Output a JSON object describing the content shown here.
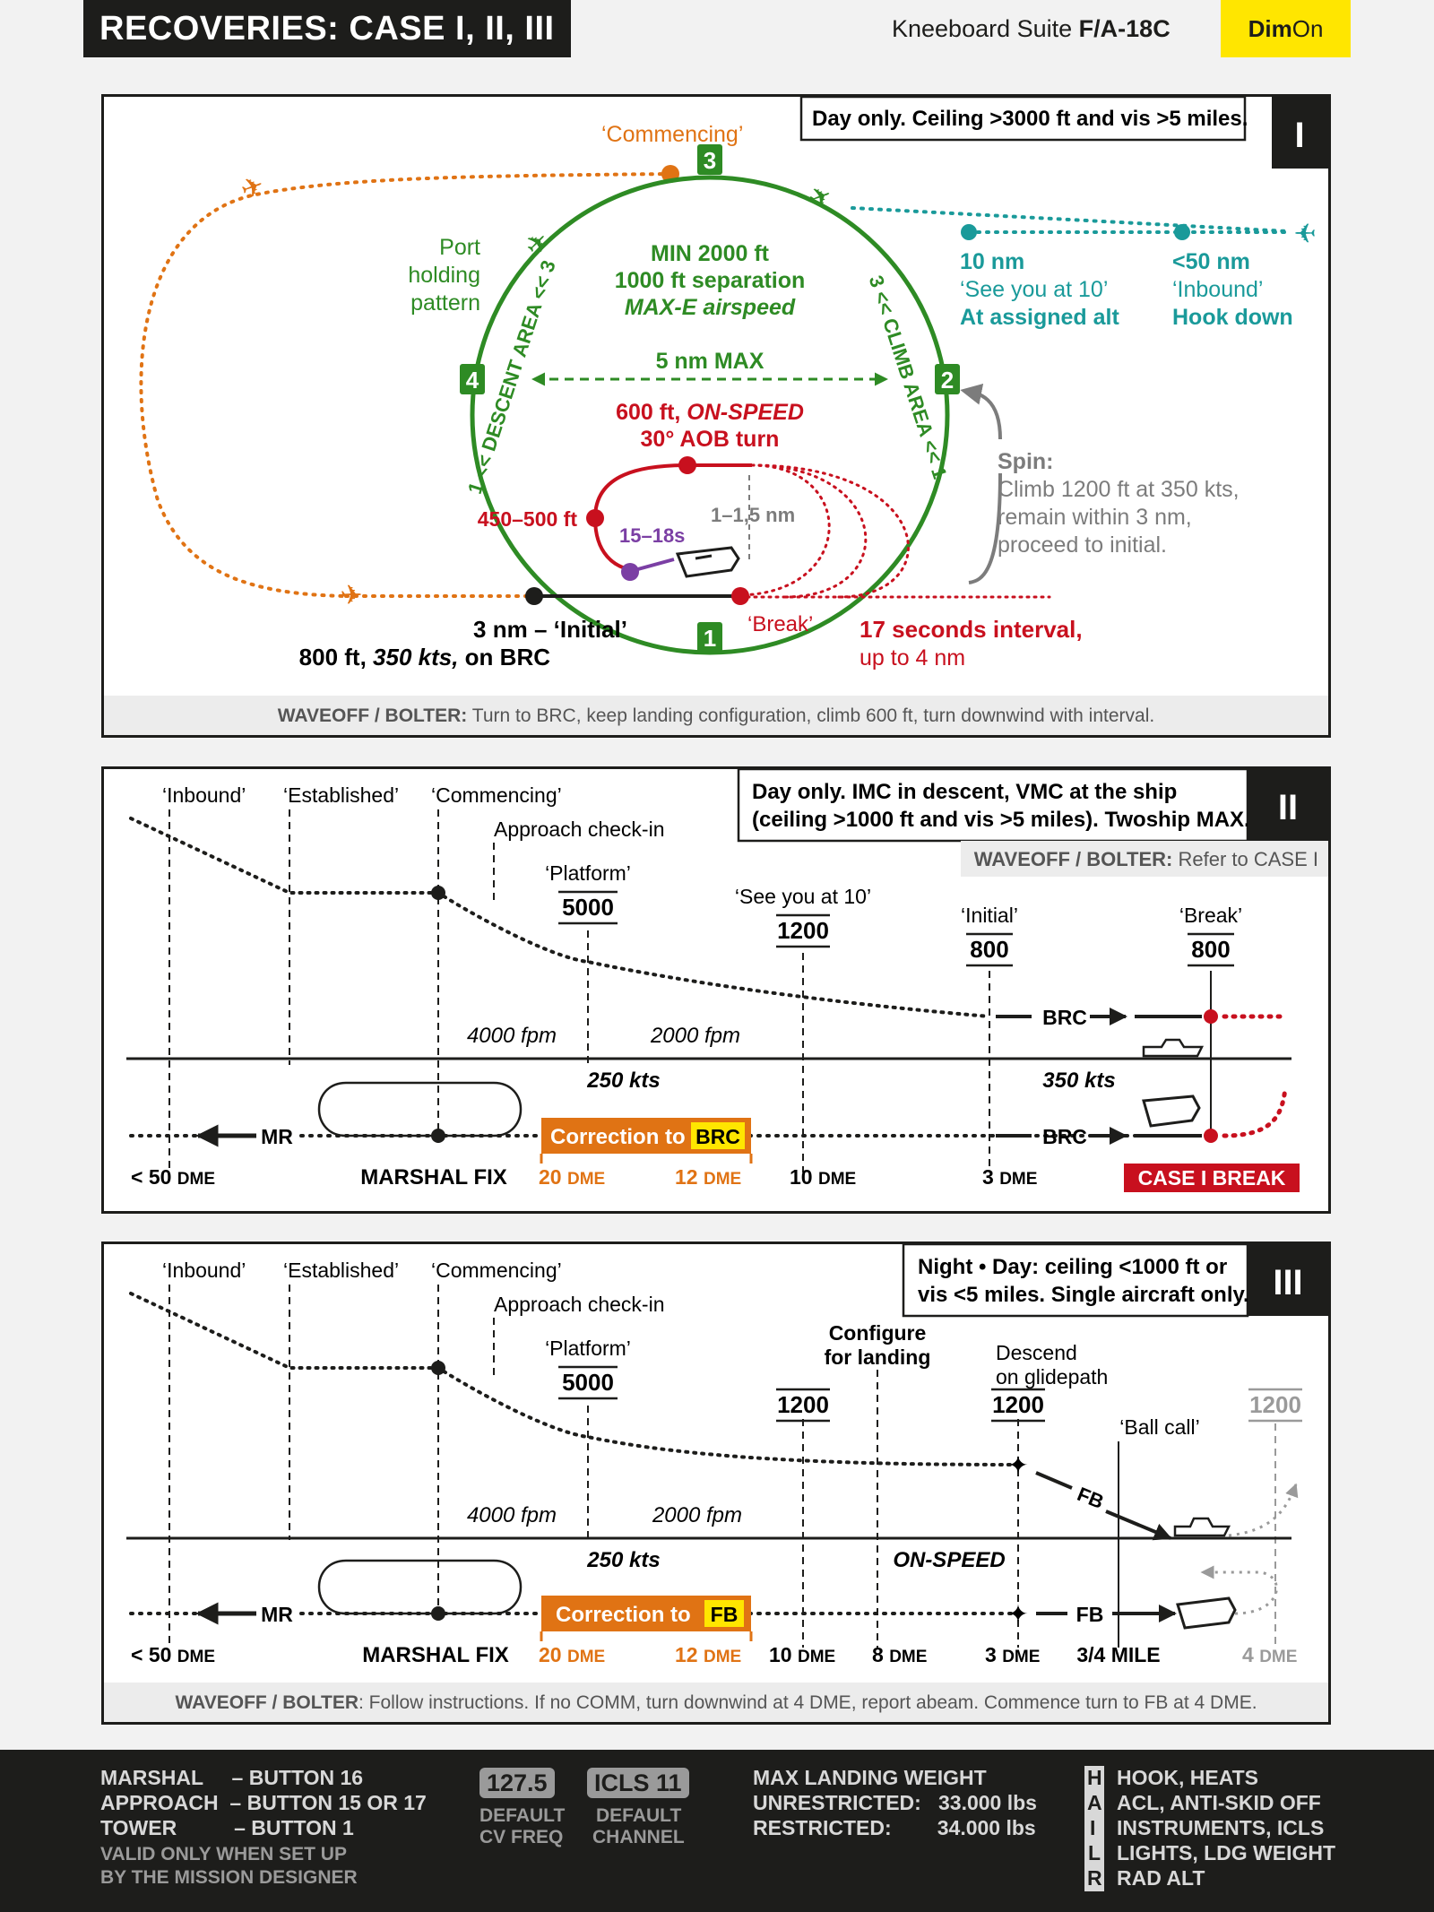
{
  "header": {
    "title": "RECOVERIES: CASE I, II, III",
    "suite_prefix": "Kneeboard Suite ",
    "aircraft": "F/A-18C",
    "brand_a": "Dim",
    "brand_b": "On"
  },
  "case1": {
    "tag": "I",
    "condition": "Day only. Ceiling >3000 ft and vis >5 miles.",
    "commencing": "‘Commencing’",
    "p3": "3",
    "p2": "2",
    "p4": "4",
    "p1": "1",
    "port1": "Port",
    "port2": "holding",
    "port3": "pattern",
    "min_alt": "MIN 2000 ft",
    "separation": "1000 ft separation",
    "airspeed": "MAX-E airspeed",
    "descent_area": "1 << DESCENT AREA << 3",
    "climb_area": "3 << CLIMB AREA << 1",
    "diameter": "5 nm MAX",
    "onspeed_a": "600 ft, ",
    "onspeed_b": "ON-SPEED",
    "aob": "30° AOB turn",
    "alt_450": "450–500 ft",
    "time_1518": "15–18s",
    "range_11": "1–1,5 nm",
    "r10_a": "10 nm",
    "r10_b": "‘See you at 10’",
    "r10_c": "At assigned alt",
    "r50_a": "<50 nm",
    "r50_b": "‘Inbound’",
    "r50_c": "Hook down",
    "spin_title": "Spin:",
    "spin1": "Climb 1200 ft at 350 kts,",
    "spin2": "remain within 3 nm,",
    "spin3": "proceed to initial.",
    "break": "‘Break’",
    "interval1": "17 seconds interval,",
    "interval2": "up to 4 nm",
    "initial1": "3 nm – ‘Initial’",
    "initial2a": "800 ft, ",
    "initial2b": "350 kts,",
    "initial2c": " on BRC",
    "waveoff_label": "WAVEOFF / BOLTER:",
    "waveoff_text": " Turn to BRC, keep landing configuration, climb 600 ft, turn downwind with interval."
  },
  "case2": {
    "tag": "II",
    "condition1": "Day only. IMC in descent, VMC at the ship",
    "condition2": "(ceiling >1000 ft and vis >5 miles). Twoship MAX.",
    "waveoff_label": "WAVEOFF / BOLTER:",
    "waveoff_text": " Refer to CASE I",
    "inbound": "‘Inbound’",
    "established": "‘Established’",
    "commencing": "‘Commencing’",
    "checkin": "Approach check-in",
    "platform": "‘Platform’",
    "alt5000": "5000",
    "see10": "‘See you at 10’",
    "alt1200": "1200",
    "initial": "‘Initial’",
    "alt800a": "800",
    "breakl": "‘Break’",
    "alt800b": "800",
    "fpm4000": "4000 fpm",
    "fpm2000": "2000 fpm",
    "kts250": "250 kts",
    "kts350": "350 kts",
    "brc_top": "BRC",
    "brc_bot": "BRC",
    "mr": "MR",
    "correction_a": "Correction to ",
    "correction_b": "BRC",
    "dme50a": "< 50 ",
    "dme50b": "DME",
    "marshal": "MARSHAL FIX",
    "dme20a": "20 ",
    "dme20b": "DME",
    "dme12a": "12 ",
    "dme12b": "DME",
    "dme10a": "10 ",
    "dme10b": "DME",
    "dme3a": "3 ",
    "dme3b": "DME",
    "case1break": "CASE I BREAK"
  },
  "case3": {
    "tag": "III",
    "condition1": "Night • Day: ceiling <1000 ft or",
    "condition2": "vis <5 miles. Single aircraft only.",
    "inbound": "‘Inbound’",
    "established": "‘Established’",
    "commencing": "‘Commencing’",
    "checkin": "Approach check-in",
    "platform": "‘Platform’",
    "alt5000": "5000",
    "configure1": "Configure",
    "configure2": "for landing",
    "alt1200a": "1200",
    "descend1": "Descend",
    "descend2": "on glidepath",
    "alt1200b": "1200",
    "ballcall": "‘Ball call’",
    "alt1200c": "1200",
    "fpm4000": "4000 fpm",
    "fpm2000": "2000 fpm",
    "kts250": "250 kts",
    "onspeed": "ON-SPEED",
    "fb_top": "FB",
    "fb_bot": "FB",
    "mr": "MR",
    "correction_a": "Correction to ",
    "correction_b": "FB",
    "dme50a": "< 50 ",
    "dme50b": "DME",
    "marshal": "MARSHAL FIX",
    "dme20a": "20 ",
    "dme20b": "DME",
    "dme12a": "12 ",
    "dme12b": "DME",
    "dme10a": "10 ",
    "dme10b": "DME",
    "dme8a": "8 ",
    "dme8b": "DME",
    "dme3a": "3 ",
    "dme3b": "DME",
    "mile34": "3/4 MILE",
    "dme4a": "4 ",
    "dme4b": "DME",
    "waveoff_label": "WAVEOFF / BOLTER",
    "waveoff_text": ": Follow instructions. If no COMM, turn downwind at 4 DME, report abeam. Commence turn to FB at 4 DME."
  },
  "footer": {
    "marshal": "MARSHAL     – BUTTON 16",
    "approach": "APPROACH  – BUTTON 15 OR 17",
    "tower": "TOWER          – BUTTON 1",
    "valid1": "VALID ONLY WHEN SET UP",
    "valid2": "BY THE MISSION DESIGNER",
    "freq": "127.5",
    "freq_l1": "DEFAULT",
    "freq_l2": "CV FREQ",
    "icls": "ICLS 11",
    "icls_l1": "DEFAULT",
    "icls_l2": "CHANNEL",
    "mlw": "MAX LANDING WEIGHT",
    "unrestricted": "UNRESTRICTED:   33.000 lbs",
    "restricted": "RESTRICTED:        34.000 lbs",
    "hail_h": "H",
    "hail_a": "A",
    "hail_i": "I",
    "hail_l": "L",
    "hail_r": "R",
    "hail1": "HOOK, HEATS",
    "hail2": "ACL, ANTI-SKID OFF",
    "hail3": "INSTRUMENTS, ICLS",
    "hail4": "LIGHTS, LDG WEIGHT",
    "hail5": "RAD ALT"
  },
  "colors": {
    "green": "#2e8b24",
    "orange": "#e07314",
    "teal": "#1a9a9a",
    "red": "#c8101e",
    "purple": "#7b3fa4",
    "gray": "#7c7c7c",
    "yellow": "#ffe600"
  }
}
